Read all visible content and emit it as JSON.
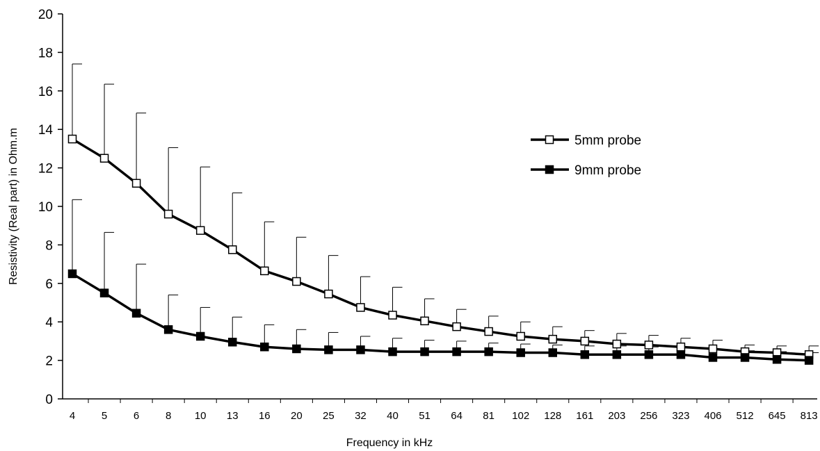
{
  "chart_data": {
    "type": "line",
    "title": "",
    "xlabel": "Frequency in kHz",
    "ylabel": "Resistivity (Real part) in Ohm.m",
    "ylim": [
      0,
      20
    ],
    "yticks": [
      0,
      2,
      4,
      6,
      8,
      10,
      12,
      14,
      16,
      18,
      20
    ],
    "categories": [
      "4",
      "5",
      "6",
      "8",
      "10",
      "13",
      "16",
      "20",
      "25",
      "32",
      "40",
      "51",
      "64",
      "81",
      "102",
      "128",
      "161",
      "203",
      "256",
      "323",
      "406",
      "512",
      "645",
      "813"
    ],
    "x_display_labels": [
      "4",
      "5",
      "6",
      "8",
      "10",
      "13",
      "16",
      "20",
      "25",
      "32",
      "40",
      "51",
      "64",
      "81",
      "102",
      "128",
      "161",
      "203",
      "256",
      "323",
      "406",
      "512",
      "645",
      "813"
    ],
    "grid": false,
    "legend_position": "right",
    "series": [
      {
        "name": "5mm probe",
        "marker": "open-square",
        "color": "#000000",
        "values": [
          13.5,
          12.5,
          11.2,
          9.6,
          8.75,
          7.75,
          6.65,
          6.1,
          5.45,
          4.75,
          4.35,
          4.05,
          3.75,
          3.5,
          3.25,
          3.1,
          3.0,
          2.85,
          2.8,
          2.7,
          2.6,
          2.45,
          2.4,
          2.3
        ],
        "error_upper": [
          17.4,
          16.35,
          14.85,
          13.05,
          12.05,
          10.7,
          9.2,
          8.4,
          7.45,
          6.35,
          5.8,
          5.2,
          4.65,
          4.3,
          4.0,
          3.75,
          3.55,
          3.4,
          3.3,
          3.15,
          3.05,
          2.8,
          2.75,
          2.75
        ]
      },
      {
        "name": "9mm probe",
        "marker": "filled-square",
        "color": "#000000",
        "values": [
          6.5,
          5.5,
          4.45,
          3.6,
          3.25,
          2.95,
          2.7,
          2.6,
          2.55,
          2.55,
          2.45,
          2.45,
          2.45,
          2.45,
          2.4,
          2.4,
          2.3,
          2.3,
          2.3,
          2.3,
          2.15,
          2.15,
          2.05,
          2.0
        ],
        "error_upper": [
          10.35,
          8.65,
          7.0,
          5.4,
          4.75,
          4.25,
          3.85,
          3.6,
          3.45,
          3.25,
          3.15,
          3.05,
          3.0,
          2.9,
          2.85,
          2.8,
          2.75,
          2.75,
          2.7,
          2.65,
          2.55,
          2.5,
          2.45,
          2.4
        ]
      }
    ]
  }
}
